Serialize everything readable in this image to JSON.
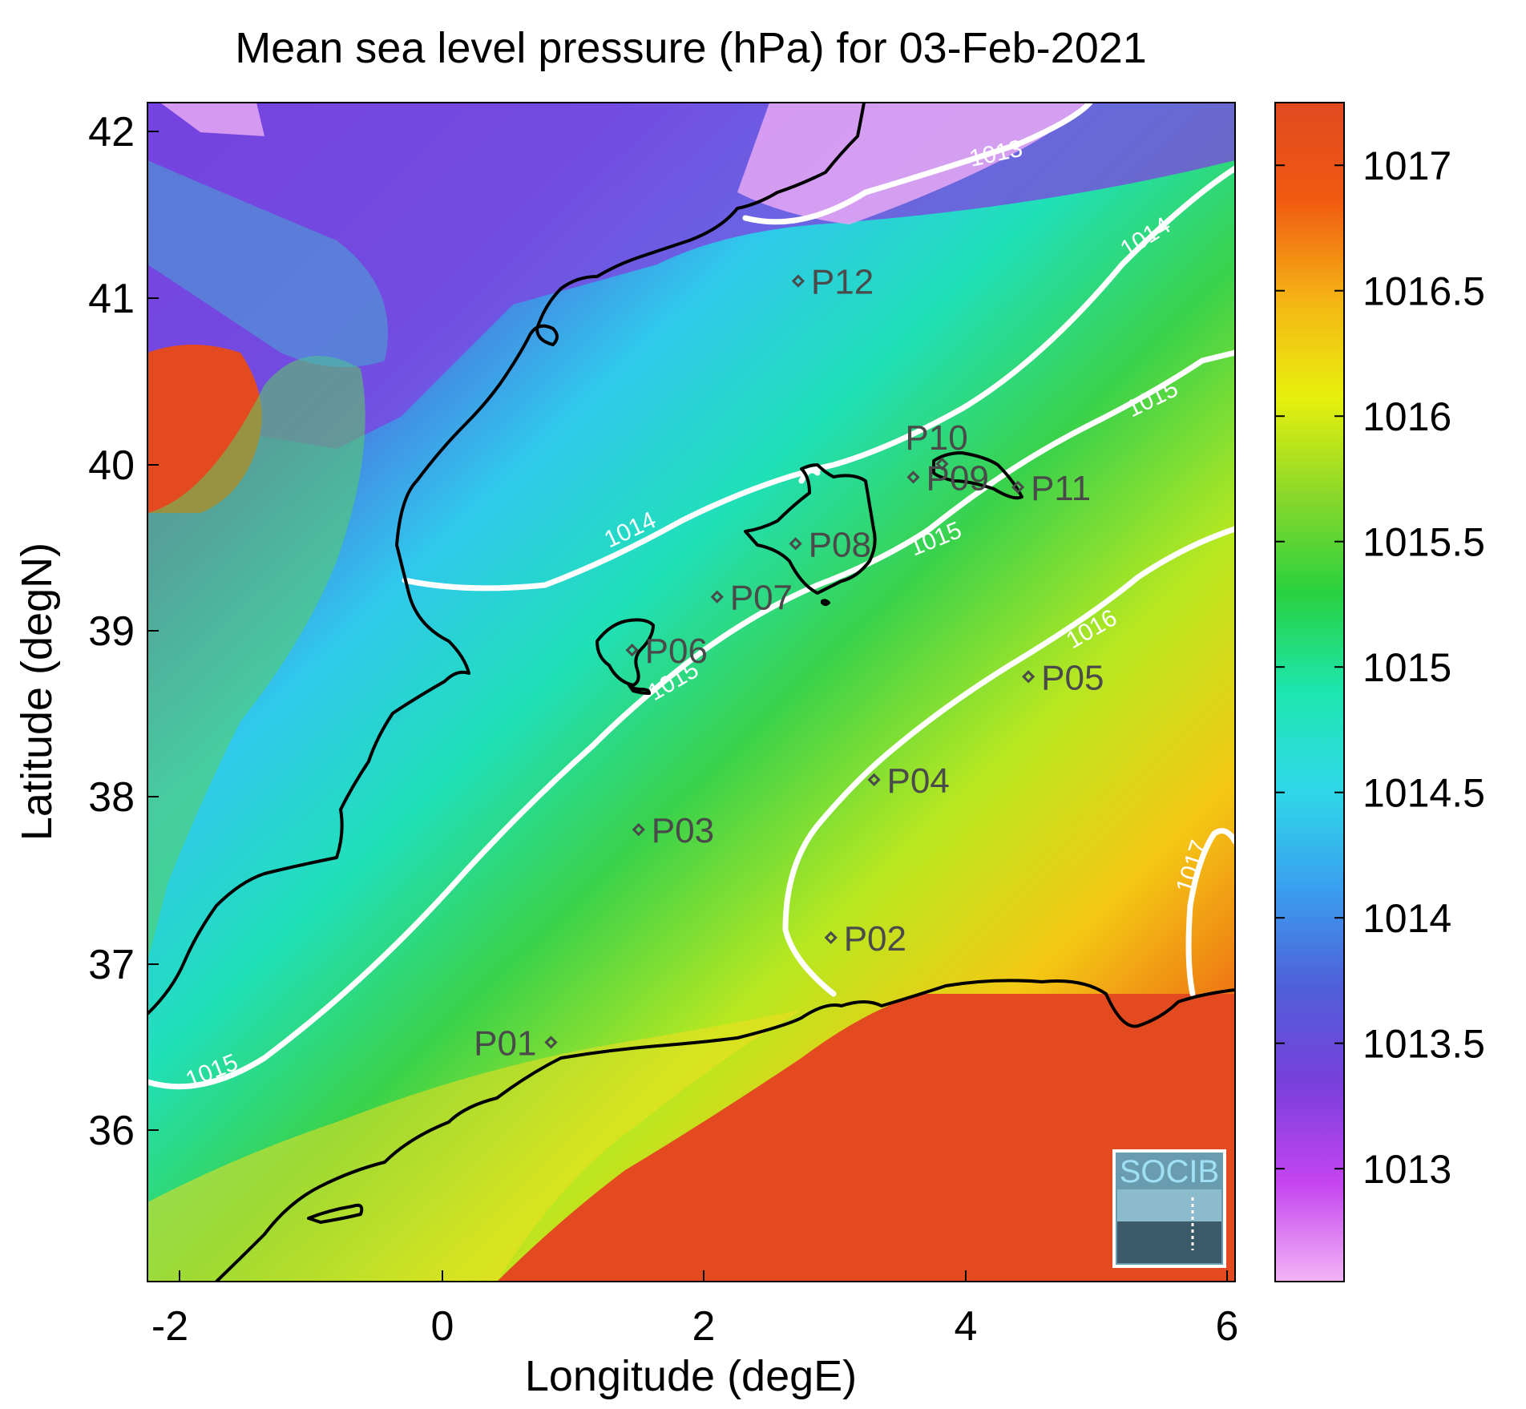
{
  "title": "Mean sea level pressure (hPa) for 03-Feb-2021",
  "xlabel": "Longitude (degE)",
  "ylabel": "Latitude (degN)",
  "x_ticks": [
    "-2",
    "0",
    "2",
    "4",
    "6"
  ],
  "y_ticks": [
    "42",
    "41",
    "40",
    "39",
    "38",
    "37",
    "36"
  ],
  "colorbar": {
    "ticks": [
      "1017",
      "1016.5",
      "1016",
      "1015.5",
      "1015",
      "1014.5",
      "1014",
      "1013.5",
      "1013"
    ],
    "range": [
      1012.55,
      1017.25
    ],
    "colors": [
      "#f2b4f5",
      "#c545f0",
      "#7a3fdc",
      "#4f5fd8",
      "#3a9ff0",
      "#2fd8e8",
      "#1ee6b0",
      "#28d140",
      "#8ad82a",
      "#e8f00e",
      "#f5b414",
      "#f05a10",
      "#e04a20"
    ]
  },
  "contour_labels": [
    {
      "text": "1013"
    },
    {
      "text": "1014"
    },
    {
      "text": "1014"
    },
    {
      "text": "1015"
    },
    {
      "text": "1015"
    },
    {
      "text": "1015"
    },
    {
      "text": "1015"
    },
    {
      "text": "1016"
    },
    {
      "text": "1017"
    }
  ],
  "stations": [
    {
      "label": "P01",
      "lon": 0.83,
      "lat": 36.52
    },
    {
      "label": "P02",
      "lon": 2.97,
      "lat": 37.15
    },
    {
      "label": "P03",
      "lon": 1.5,
      "lat": 37.8
    },
    {
      "label": "P04",
      "lon": 3.3,
      "lat": 38.1
    },
    {
      "label": "P05",
      "lon": 4.48,
      "lat": 38.72
    },
    {
      "label": "P06",
      "lon": 1.45,
      "lat": 38.88
    },
    {
      "label": "P07",
      "lon": 2.1,
      "lat": 39.2
    },
    {
      "label": "P08",
      "lon": 2.7,
      "lat": 39.52
    },
    {
      "label": "P09",
      "lon": 3.6,
      "lat": 39.92
    },
    {
      "label": "P10",
      "lon": 3.82,
      "lat": 40.0
    },
    {
      "label": "P11",
      "lon": 4.4,
      "lat": 39.86
    },
    {
      "label": "P12",
      "lon": 2.72,
      "lat": 41.1
    }
  ],
  "logo_text": "SOCIB",
  "colors": {
    "coastline": "#000000",
    "contour": "#ffffff",
    "station": "#4a4a4a"
  }
}
